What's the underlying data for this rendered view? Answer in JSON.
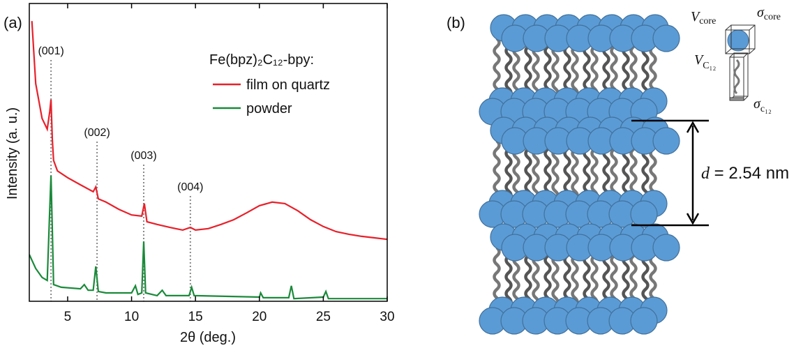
{
  "panel_labels": [
    "(a)",
    "(b)"
  ],
  "chart_data": {
    "type": "line",
    "x_label": "2θ (deg.)",
    "y_label": "Intensity (a. u.)",
    "legend_title": "Fe(bpz)₂C₁₂-bpy:",
    "xlim": [
      2,
      30
    ],
    "xticks": [
      5,
      10,
      15,
      20,
      25,
      30
    ],
    "ylim": [
      0,
      100
    ],
    "series": [
      {
        "name": "film on quartz",
        "color": "#e8202a",
        "x": [
          2.2,
          2.5,
          3.0,
          3.4,
          3.6,
          3.7,
          3.8,
          3.9,
          4.2,
          5,
          6,
          7,
          7.2,
          7.4,
          8,
          9,
          10,
          10.8,
          11.0,
          11.2,
          12,
          13,
          14,
          14.6,
          15,
          16,
          17,
          18,
          19,
          20,
          21,
          22,
          23,
          24,
          25,
          26,
          27,
          28,
          29,
          30
        ],
        "values": [
          94.1,
          73.1,
          61.4,
          57.8,
          63.7,
          67.7,
          54.3,
          47.3,
          43.8,
          41.5,
          39.1,
          36.8,
          38.4,
          34.4,
          33.3,
          30.9,
          29.0,
          28.6,
          32.8,
          26.7,
          25.8,
          24.8,
          23.9,
          24.8,
          23.9,
          24.4,
          25.8,
          27.4,
          29.7,
          32.1,
          33.3,
          32.8,
          30.4,
          27.4,
          25.1,
          23.4,
          22.5,
          21.8,
          21.3,
          20.8
        ]
      },
      {
        "name": "powder",
        "color": "#1a8a3a",
        "x": [
          2,
          2.5,
          3,
          3.4,
          3.6,
          3.7,
          3.8,
          3.9,
          4.5,
          6,
          6.3,
          6.6,
          7.0,
          7.2,
          7.4,
          8,
          10,
          10.3,
          10.5,
          10.8,
          10.95,
          11.1,
          12,
          12.4,
          12.7,
          14.5,
          14.7,
          14.9,
          20,
          20.1,
          20.3,
          22.3,
          22.5,
          22.7,
          25,
          25.2,
          25.4,
          30
        ],
        "values": [
          15.7,
          11.0,
          8.0,
          7.0,
          30.9,
          42.2,
          23.9,
          5.6,
          4.7,
          4.2,
          5.6,
          3.7,
          3.7,
          11.7,
          3.3,
          2.8,
          2.8,
          5.2,
          2.3,
          2.8,
          20.1,
          2.8,
          1.9,
          3.7,
          1.9,
          1.9,
          4.7,
          1.9,
          1.4,
          2.8,
          1.2,
          1.2,
          5.2,
          0.9,
          1.4,
          3.3,
          0.9,
          0.9
        ]
      }
    ],
    "annotations": [
      {
        "text": "(001)",
        "x": 3.7
      },
      {
        "text": "(002)",
        "x": 7.3
      },
      {
        "text": "(003)",
        "x": 10.95
      },
      {
        "text": "(004)",
        "x": 14.6
      }
    ]
  },
  "diagram": {
    "v_core": {
      "symbol": "V",
      "sub": "core"
    },
    "sigma_core": {
      "symbol": "σ",
      "sub": "core"
    },
    "v_c12": {
      "symbol": "V",
      "sub": "C₁₂"
    },
    "sigma_c12": {
      "symbol": "σ",
      "sub": "c₁₂"
    },
    "spacing": {
      "symbol": "d",
      "text": " = 2.54 nm"
    }
  }
}
